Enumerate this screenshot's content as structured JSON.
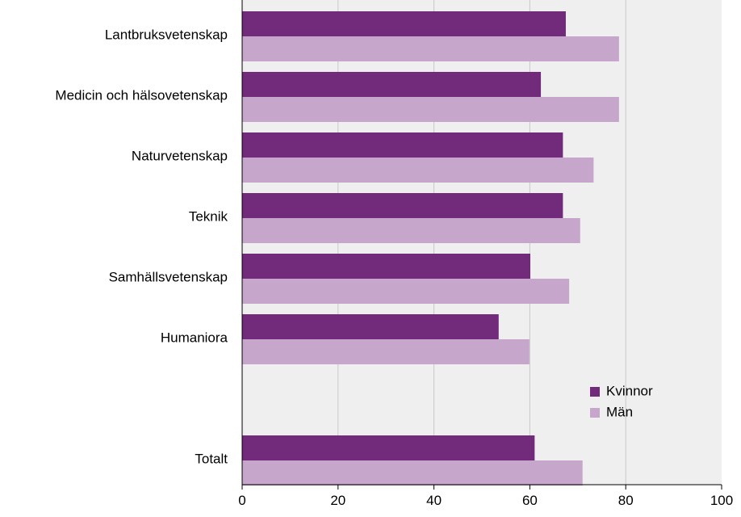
{
  "chart_data": {
    "type": "bar",
    "orientation": "horizontal",
    "categories": [
      "Lantbruksvetenskap",
      "Medicin och hälsovetenskap",
      "Naturvetenskap",
      "Teknik",
      "Samhällsvetenskap",
      "Humaniora",
      "",
      "Totalt"
    ],
    "series": [
      {
        "name": "Kvinnor",
        "color": "#722a7b",
        "values": [
          67.5,
          62.3,
          66.9,
          66.9,
          60.1,
          53.5,
          null,
          61.0
        ]
      },
      {
        "name": "Män",
        "color": "#c7a6cb",
        "values": [
          78.6,
          78.6,
          73.3,
          70.5,
          68.2,
          59.9,
          null,
          71.0
        ]
      }
    ],
    "xlim": [
      0,
      100
    ],
    "xticks": [
      "0",
      "20",
      "40",
      "60",
      "80",
      "100"
    ],
    "grid": true,
    "legend_position": "lower-right",
    "plot_background": "#efefef"
  }
}
